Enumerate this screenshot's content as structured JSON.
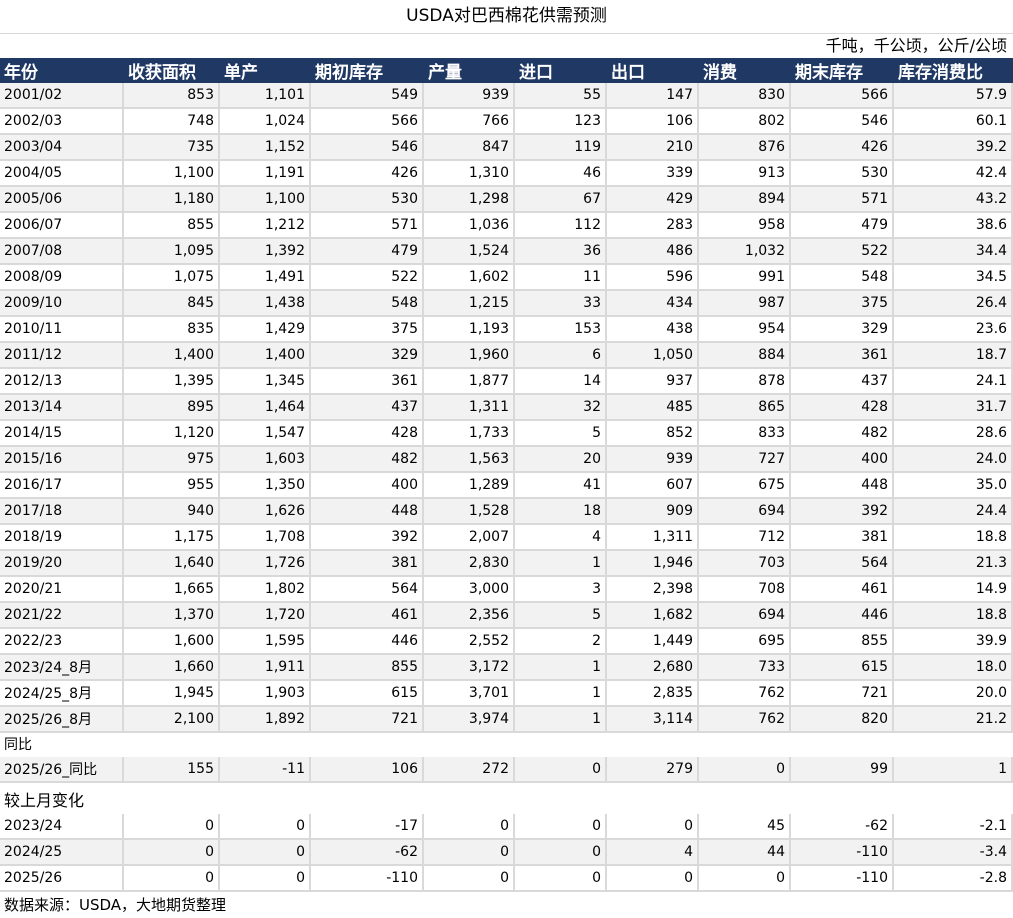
{
  "title": "USDA对巴西棉花供需预测",
  "unit": "千吨，千公顷，公斤/公顷",
  "headers": [
    "年份",
    "收获面积",
    "单产",
    "期初库存",
    "产量",
    "进口",
    "出口",
    "消费",
    "期末库存",
    "库存消费比"
  ],
  "rows": [
    [
      "2001/02",
      "853",
      "1,101",
      "549",
      "939",
      "55",
      "147",
      "830",
      "566",
      "57.9"
    ],
    [
      "2002/03",
      "748",
      "1,024",
      "566",
      "766",
      "123",
      "106",
      "802",
      "546",
      "60.1"
    ],
    [
      "2003/04",
      "735",
      "1,152",
      "546",
      "847",
      "119",
      "210",
      "876",
      "426",
      "39.2"
    ],
    [
      "2004/05",
      "1,100",
      "1,191",
      "426",
      "1,310",
      "46",
      "339",
      "913",
      "530",
      "42.4"
    ],
    [
      "2005/06",
      "1,180",
      "1,100",
      "530",
      "1,298",
      "67",
      "429",
      "894",
      "571",
      "43.2"
    ],
    [
      "2006/07",
      "855",
      "1,212",
      "571",
      "1,036",
      "112",
      "283",
      "958",
      "479",
      "38.6"
    ],
    [
      "2007/08",
      "1,095",
      "1,392",
      "479",
      "1,524",
      "36",
      "486",
      "1,032",
      "522",
      "34.4"
    ],
    [
      "2008/09",
      "1,075",
      "1,491",
      "522",
      "1,602",
      "11",
      "596",
      "991",
      "548",
      "34.5"
    ],
    [
      "2009/10",
      "845",
      "1,438",
      "548",
      "1,215",
      "33",
      "434",
      "987",
      "375",
      "26.4"
    ],
    [
      "2010/11",
      "835",
      "1,429",
      "375",
      "1,193",
      "153",
      "438",
      "954",
      "329",
      "23.6"
    ],
    [
      "2011/12",
      "1,400",
      "1,400",
      "329",
      "1,960",
      "6",
      "1,050",
      "884",
      "361",
      "18.7"
    ],
    [
      "2012/13",
      "1,395",
      "1,345",
      "361",
      "1,877",
      "14",
      "937",
      "878",
      "437",
      "24.1"
    ],
    [
      "2013/14",
      "895",
      "1,464",
      "437",
      "1,311",
      "32",
      "485",
      "865",
      "428",
      "31.7"
    ],
    [
      "2014/15",
      "1,120",
      "1,547",
      "428",
      "1,733",
      "5",
      "852",
      "833",
      "482",
      "28.6"
    ],
    [
      "2015/16",
      "975",
      "1,603",
      "482",
      "1,563",
      "20",
      "939",
      "727",
      "400",
      "24.0"
    ],
    [
      "2016/17",
      "955",
      "1,350",
      "400",
      "1,289",
      "41",
      "607",
      "675",
      "448",
      "35.0"
    ],
    [
      "2017/18",
      "940",
      "1,626",
      "448",
      "1,528",
      "18",
      "909",
      "694",
      "392",
      "24.4"
    ],
    [
      "2018/19",
      "1,175",
      "1,708",
      "392",
      "2,007",
      "4",
      "1,311",
      "712",
      "381",
      "18.8"
    ],
    [
      "2019/20",
      "1,640",
      "1,726",
      "381",
      "2,830",
      "1",
      "1,946",
      "703",
      "564",
      "21.3"
    ],
    [
      "2020/21",
      "1,665",
      "1,802",
      "564",
      "3,000",
      "3",
      "2,398",
      "708",
      "461",
      "14.9"
    ],
    [
      "2021/22",
      "1,370",
      "1,720",
      "461",
      "2,356",
      "5",
      "1,682",
      "694",
      "446",
      "18.8"
    ],
    [
      "2022/23",
      "1,600",
      "1,595",
      "446",
      "2,552",
      "2",
      "1,449",
      "695",
      "855",
      "39.9"
    ],
    [
      "2023/24_8月",
      "1,660",
      "1,911",
      "855",
      "3,172",
      "1",
      "2,680",
      "733",
      "615",
      "18.0"
    ],
    [
      "2024/25_8月",
      "1,945",
      "1,903",
      "615",
      "3,701",
      "1",
      "2,835",
      "762",
      "721",
      "20.0"
    ],
    [
      "2025/26_8月",
      "2,100",
      "1,892",
      "721",
      "3,974",
      "1",
      "3,114",
      "762",
      "820",
      "21.2"
    ]
  ],
  "yoy_label": "同比",
  "yoy_rows": [
    [
      "2025/26_同比",
      "155",
      "-11",
      "106",
      "272",
      "0",
      "279",
      "0",
      "99",
      "1"
    ]
  ],
  "mom_label": "较上月变化",
  "mom_rows": [
    [
      "2023/24",
      "0",
      "0",
      "-17",
      "0",
      "0",
      "0",
      "45",
      "-62",
      "-2.1"
    ],
    [
      "2024/25",
      "0",
      "0",
      "-62",
      "0",
      "0",
      "4",
      "44",
      "-110",
      "-3.4"
    ],
    [
      "2025/26",
      "0",
      "0",
      "-110",
      "0",
      "0",
      "0",
      "0",
      "-110",
      "-2.8"
    ]
  ],
  "source": "数据来源：USDA，大地期货整理"
}
